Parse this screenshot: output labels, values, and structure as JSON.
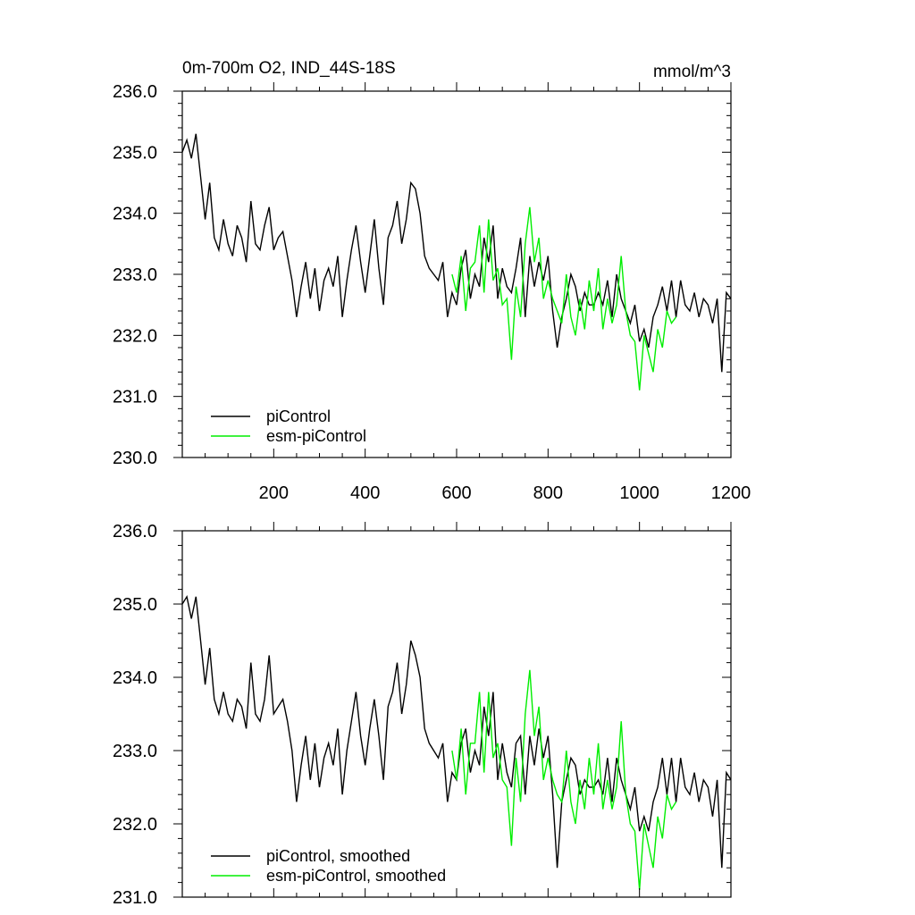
{
  "chart_data": [
    {
      "type": "line",
      "title": "0m-700m O2, IND_44S-18S",
      "units": "mmol/m^3",
      "xlim": [
        0,
        1200
      ],
      "ylim": [
        230,
        236
      ],
      "xticks": [
        200,
        400,
        600,
        800,
        1000,
        1200
      ],
      "xtick_labels": [
        "200",
        "400",
        "600",
        "800",
        "1000",
        "1200"
      ],
      "yticks": [
        230,
        231,
        232,
        233,
        234,
        235,
        236
      ],
      "ytick_labels": [
        "230.0",
        "231.0",
        "232.0",
        "233.0",
        "234.0",
        "235.0",
        "236.0"
      ],
      "legend_position": "bottom-left",
      "series": [
        {
          "name": "piControl",
          "color": "#000000",
          "x": [
            0,
            10,
            20,
            30,
            40,
            50,
            60,
            70,
            80,
            90,
            100,
            110,
            120,
            130,
            140,
            150,
            160,
            170,
            180,
            190,
            200,
            210,
            220,
            230,
            240,
            250,
            260,
            270,
            280,
            290,
            300,
            310,
            320,
            330,
            340,
            350,
            360,
            370,
            380,
            390,
            400,
            410,
            420,
            430,
            440,
            450,
            460,
            470,
            480,
            490,
            500,
            510,
            520,
            530,
            540,
            550,
            560,
            570,
            580,
            590,
            600,
            610,
            620,
            630,
            640,
            650,
            660,
            670,
            680,
            690,
            700,
            710,
            720,
            730,
            740,
            750,
            760,
            770,
            780,
            790,
            800,
            810,
            820,
            830,
            840,
            850,
            860,
            870,
            880,
            890,
            900,
            910,
            920,
            930,
            940,
            950,
            960,
            970,
            980,
            990,
            1000,
            1010,
            1020,
            1030,
            1040,
            1050,
            1060,
            1070,
            1080,
            1090,
            1100,
            1110,
            1120,
            1130,
            1140,
            1150,
            1160,
            1170,
            1180,
            1190,
            1200
          ],
          "values": [
            235.0,
            235.2,
            234.9,
            235.3,
            234.6,
            233.9,
            234.5,
            233.6,
            233.4,
            233.9,
            233.5,
            233.3,
            233.8,
            233.6,
            233.2,
            234.2,
            233.5,
            233.4,
            233.8,
            234.1,
            233.4,
            233.6,
            233.7,
            233.3,
            232.9,
            232.3,
            232.8,
            233.2,
            232.6,
            233.1,
            232.4,
            232.9,
            233.1,
            232.8,
            233.3,
            232.3,
            232.9,
            233.4,
            233.8,
            233.2,
            232.7,
            233.3,
            233.9,
            233.1,
            232.5,
            233.6,
            233.8,
            234.2,
            233.5,
            233.9,
            234.5,
            234.4,
            234.0,
            233.3,
            233.1,
            233.0,
            232.9,
            233.2,
            232.3,
            232.7,
            232.5,
            233.1,
            233.4,
            232.6,
            233.0,
            232.8,
            233.6,
            233.2,
            233.8,
            232.6,
            233.1,
            232.8,
            232.7,
            233.1,
            233.6,
            232.3,
            233.3,
            232.8,
            233.2,
            232.9,
            233.3,
            232.4,
            231.8,
            232.3,
            232.6,
            233.0,
            232.8,
            232.4,
            232.7,
            232.5,
            232.5,
            232.7,
            232.5,
            232.9,
            232.3,
            233.0,
            232.6,
            232.4,
            232.2,
            232.5,
            231.9,
            232.1,
            231.8,
            232.3,
            232.5,
            232.8,
            232.4,
            232.9,
            232.3,
            232.9,
            232.5,
            232.4,
            232.7,
            232.3,
            232.6,
            232.5,
            232.2,
            232.6,
            231.4,
            232.7,
            232.6
          ]
        },
        {
          "name": "esm-piControl",
          "color": "#00ee00",
          "x": [
            590,
            600,
            610,
            620,
            630,
            640,
            650,
            660,
            670,
            680,
            690,
            700,
            710,
            720,
            730,
            740,
            750,
            760,
            770,
            780,
            790,
            800,
            810,
            820,
            830,
            840,
            850,
            860,
            870,
            880,
            890,
            900,
            910,
            920,
            930,
            940,
            950,
            960,
            970,
            980,
            990,
            1000,
            1010,
            1020,
            1030,
            1040,
            1050,
            1060,
            1070,
            1080
          ],
          "values": [
            233.0,
            232.7,
            233.3,
            232.4,
            233.1,
            233.2,
            233.8,
            232.7,
            233.9,
            232.9,
            233.1,
            232.5,
            232.6,
            231.6,
            232.8,
            232.3,
            233.5,
            234.1,
            233.2,
            233.6,
            232.6,
            232.9,
            232.6,
            232.4,
            232.2,
            233.0,
            232.3,
            232.0,
            232.6,
            232.1,
            232.9,
            232.4,
            233.1,
            232.1,
            232.6,
            232.2,
            232.5,
            233.3,
            232.4,
            232.0,
            231.9,
            231.1,
            232.0,
            231.7,
            231.4,
            232.1,
            231.8,
            232.4,
            232.2,
            232.3
          ]
        }
      ]
    },
    {
      "type": "line",
      "xlim": [
        0,
        1200
      ],
      "ylim": [
        231,
        236
      ],
      "yticks": [
        231,
        232,
        233,
        234,
        235,
        236
      ],
      "ytick_labels": [
        "231.0",
        "232.0",
        "233.0",
        "234.0",
        "235.0",
        "236.0"
      ],
      "legend_position": "bottom-left",
      "series": [
        {
          "name": "piControl, smoothed",
          "color": "#000000",
          "x": [
            0,
            10,
            20,
            30,
            40,
            50,
            60,
            70,
            80,
            90,
            100,
            110,
            120,
            130,
            140,
            150,
            160,
            170,
            180,
            190,
            200,
            210,
            220,
            230,
            240,
            250,
            260,
            270,
            280,
            290,
            300,
            310,
            320,
            330,
            340,
            350,
            360,
            370,
            380,
            390,
            400,
            410,
            420,
            430,
            440,
            450,
            460,
            470,
            480,
            490,
            500,
            510,
            520,
            530,
            540,
            550,
            560,
            570,
            580,
            590,
            600,
            610,
            620,
            630,
            640,
            650,
            660,
            670,
            680,
            690,
            700,
            710,
            720,
            730,
            740,
            750,
            760,
            770,
            780,
            790,
            800,
            810,
            820,
            830,
            840,
            850,
            860,
            870,
            880,
            890,
            900,
            910,
            920,
            930,
            940,
            950,
            960,
            970,
            980,
            990,
            1000,
            1010,
            1020,
            1030,
            1040,
            1050,
            1060,
            1070,
            1080,
            1090,
            1100,
            1110,
            1120,
            1130,
            1140,
            1150,
            1160,
            1170,
            1180,
            1190,
            1200
          ],
          "values": [
            235.0,
            235.1,
            234.8,
            235.1,
            234.5,
            233.9,
            234.4,
            233.7,
            233.5,
            233.8,
            233.5,
            233.4,
            233.7,
            233.6,
            233.3,
            234.2,
            233.5,
            233.4,
            233.7,
            234.3,
            233.5,
            233.6,
            233.7,
            233.4,
            233.0,
            232.3,
            232.8,
            233.2,
            232.6,
            233.1,
            232.5,
            232.9,
            233.1,
            232.8,
            233.3,
            232.4,
            233.0,
            233.4,
            233.8,
            233.2,
            232.8,
            233.3,
            233.7,
            233.2,
            232.6,
            233.6,
            233.8,
            234.2,
            233.5,
            233.9,
            234.5,
            234.3,
            234.0,
            233.3,
            233.1,
            233.0,
            232.9,
            233.1,
            232.3,
            232.7,
            232.6,
            233.1,
            233.3,
            232.7,
            233.0,
            232.8,
            233.6,
            233.2,
            233.8,
            232.6,
            233.1,
            232.7,
            232.5,
            233.1,
            233.2,
            232.4,
            233.2,
            232.8,
            233.3,
            232.9,
            233.2,
            232.4,
            231.4,
            232.3,
            232.6,
            232.9,
            232.8,
            232.4,
            232.6,
            232.5,
            232.5,
            232.6,
            232.4,
            232.9,
            232.3,
            232.9,
            232.6,
            232.4,
            232.2,
            232.5,
            231.9,
            232.1,
            231.9,
            232.3,
            232.5,
            232.9,
            232.4,
            232.9,
            232.3,
            232.9,
            232.5,
            232.4,
            232.7,
            232.3,
            232.6,
            232.5,
            232.1,
            232.6,
            231.4,
            232.7,
            232.6
          ]
        },
        {
          "name": "esm-piControl, smoothed",
          "color": "#00ee00",
          "x": [
            590,
            600,
            610,
            620,
            630,
            640,
            650,
            660,
            670,
            680,
            690,
            700,
            710,
            720,
            730,
            740,
            750,
            760,
            770,
            780,
            790,
            800,
            810,
            820,
            830,
            840,
            850,
            860,
            870,
            880,
            890,
            900,
            910,
            920,
            930,
            940,
            950,
            960,
            970,
            980,
            990,
            1000,
            1010,
            1020,
            1030,
            1040,
            1050,
            1060,
            1070,
            1080
          ],
          "values": [
            233.0,
            232.6,
            233.3,
            232.4,
            233.1,
            233.1,
            233.8,
            232.7,
            233.8,
            232.9,
            233.1,
            232.6,
            232.5,
            231.7,
            232.9,
            232.3,
            233.5,
            234.1,
            233.2,
            233.6,
            232.6,
            232.9,
            232.6,
            232.4,
            232.3,
            233.0,
            232.3,
            232.0,
            232.6,
            232.2,
            232.9,
            232.4,
            233.1,
            232.2,
            232.6,
            232.2,
            232.5,
            233.4,
            232.4,
            232.0,
            231.9,
            231.1,
            232.0,
            231.7,
            231.4,
            232.1,
            231.8,
            232.4,
            232.2,
            232.3
          ]
        }
      ]
    }
  ]
}
